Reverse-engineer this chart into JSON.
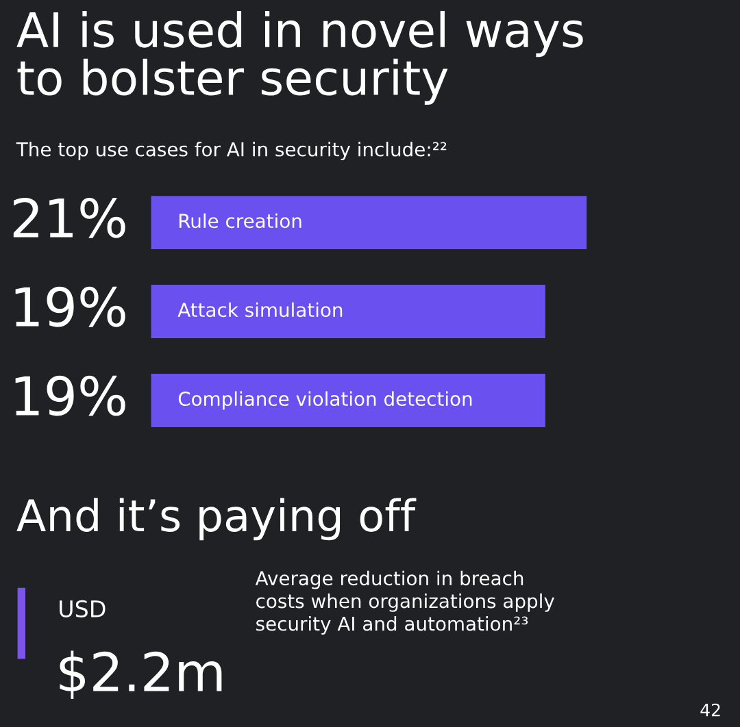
{
  "chart_data": {
    "type": "bar",
    "orientation": "horizontal",
    "title": "AI is used in novel ways\nto bolster security",
    "subtitle": "The top use cases for AI in security include:²²",
    "categories": [
      "Rule creation",
      "Attack simulation",
      "Compliance violation detection"
    ],
    "values": [
      21,
      19,
      19
    ],
    "value_labels": [
      "21%",
      "19%",
      "19%"
    ],
    "colors": [
      "#6a50ee",
      "#6a50ee",
      "#6a50ee"
    ],
    "xlim": [
      0,
      21
    ],
    "annotations": [
      "And it’s paying off",
      "USD",
      "$2.2m",
      "Average reduction in breach\ncosts when organizations apply\nsecurity AI and automation²³",
      "42"
    ]
  }
}
